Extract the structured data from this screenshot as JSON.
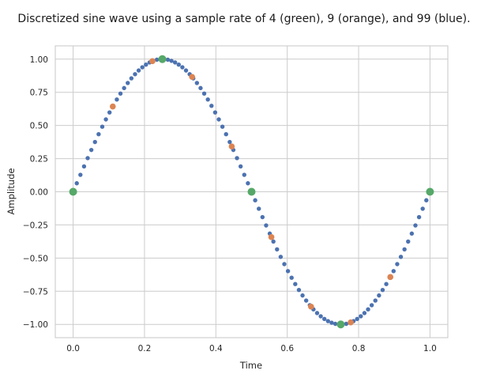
{
  "chart_data": {
    "type": "scatter",
    "title": "Discretized sine wave using a sample rate of 4 (green), 9 (orange), and 99 (blue).",
    "xlabel": "Time",
    "ylabel": "Amplitude",
    "xlim": [
      -0.05,
      1.05
    ],
    "ylim": [
      -1.1,
      1.1
    ],
    "xticks": [
      0.0,
      0.2,
      0.4,
      0.6,
      0.8,
      1.0
    ],
    "xtick_labels": [
      "0.0",
      "0.2",
      "0.4",
      "0.6",
      "0.8",
      "1.0"
    ],
    "yticks": [
      -1.0,
      -0.75,
      -0.5,
      -0.25,
      0.0,
      0.25,
      0.5,
      0.75,
      1.0
    ],
    "ytick_labels": [
      "−1.00",
      "−0.75",
      "−0.50",
      "−0.25",
      "0.00",
      "0.25",
      "0.50",
      "0.75",
      "1.00"
    ],
    "grid": true,
    "series": [
      {
        "color": "#4c72b0",
        "x": [
          0.0,
          0.010204,
          0.020408,
          0.030612,
          0.040816,
          0.05102,
          0.061224,
          0.071429,
          0.081633,
          0.091837,
          0.102041,
          0.112245,
          0.122449,
          0.132653,
          0.142857,
          0.153061,
          0.163265,
          0.173469,
          0.183673,
          0.193878,
          0.204082,
          0.214286,
          0.22449,
          0.234694,
          0.244898,
          0.255102,
          0.265306,
          0.27551,
          0.285714,
          0.295918,
          0.306122,
          0.316327,
          0.326531,
          0.336735,
          0.346939,
          0.357143,
          0.367347,
          0.377551,
          0.387755,
          0.397959,
          0.408163,
          0.418367,
          0.428571,
          0.438776,
          0.44898,
          0.459184,
          0.469388,
          0.479592,
          0.489796,
          0.5,
          0.510204,
          0.520408,
          0.530612,
          0.540816,
          0.55102,
          0.561224,
          0.571429,
          0.581633,
          0.591837,
          0.602041,
          0.612245,
          0.622449,
          0.632653,
          0.642857,
          0.653061,
          0.663265,
          0.673469,
          0.683673,
          0.693878,
          0.704082,
          0.714286,
          0.72449,
          0.734694,
          0.744898,
          0.755102,
          0.765306,
          0.77551,
          0.785714,
          0.795918,
          0.806122,
          0.816327,
          0.826531,
          0.836735,
          0.846939,
          0.857143,
          0.867347,
          0.877551,
          0.887755,
          0.897959,
          0.908163,
          0.918367,
          0.928571,
          0.938776,
          0.94898,
          0.959184,
          0.969388,
          0.979592,
          0.989796,
          1.0
        ],
        "y": [
          0.0,
          0.0641,
          0.1279,
          0.1912,
          0.2537,
          0.3151,
          0.3753,
          0.4339,
          0.4907,
          0.5455,
          0.5981,
          0.6482,
          0.6957,
          0.7403,
          0.7818,
          0.8202,
          0.8551,
          0.8866,
          0.9144,
          0.9385,
          0.9587,
          0.975,
          0.9874,
          0.9957,
          0.9999,
          0.9999,
          0.9957,
          0.9874,
          0.975,
          0.9587,
          0.9385,
          0.9144,
          0.8866,
          0.8551,
          0.8202,
          0.7818,
          0.7403,
          0.6957,
          0.6482,
          0.5981,
          0.5455,
          0.4907,
          0.4339,
          0.3753,
          0.3151,
          0.2537,
          0.1912,
          0.1279,
          0.0641,
          0.0,
          -0.0641,
          -0.1279,
          -0.1912,
          -0.2537,
          -0.3151,
          -0.3753,
          -0.4339,
          -0.4907,
          -0.5455,
          -0.5981,
          -0.6482,
          -0.6957,
          -0.7403,
          -0.7818,
          -0.8202,
          -0.8551,
          -0.8866,
          -0.9144,
          -0.9385,
          -0.9587,
          -0.975,
          -0.9874,
          -0.9957,
          -0.9999,
          -0.9999,
          -0.9957,
          -0.9874,
          -0.975,
          -0.9587,
          -0.9385,
          -0.9144,
          -0.8866,
          -0.8551,
          -0.8202,
          -0.7818,
          -0.7403,
          -0.6957,
          -0.6482,
          -0.5981,
          -0.5455,
          -0.4907,
          -0.4339,
          -0.3753,
          -0.3151,
          -0.2537,
          -0.1912,
          -0.1279,
          -0.0641,
          0.0
        ]
      },
      {
        "color": "#dd8452",
        "x": [
          0.0,
          0.111111,
          0.222222,
          0.333333,
          0.444444,
          0.555556,
          0.666667,
          0.777778,
          0.888889,
          1.0
        ],
        "y": [
          0.0,
          0.6428,
          0.9848,
          0.866,
          0.342,
          -0.342,
          -0.866,
          -0.9848,
          -0.6428,
          0.0
        ]
      },
      {
        "color": "#55a868",
        "x": [
          0.0,
          0.25,
          0.5,
          0.75,
          1.0
        ],
        "y": [
          0.0,
          1.0,
          0.0,
          -1.0,
          0.0
        ]
      }
    ]
  }
}
